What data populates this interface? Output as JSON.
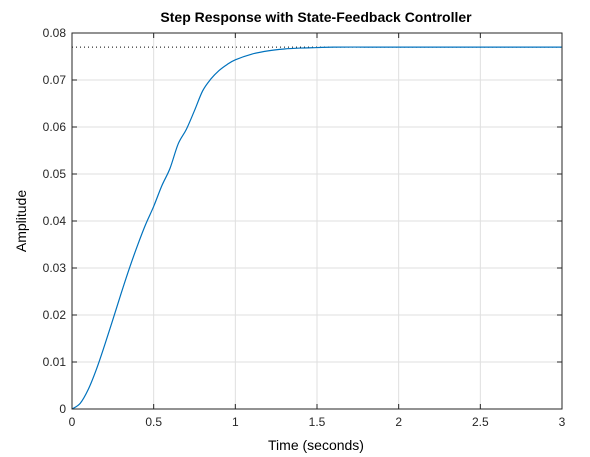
{
  "chart_data": {
    "type": "line",
    "title": "Step Response with State-Feedback Controller",
    "xlabel": "Time (seconds)",
    "ylabel": "Amplitude",
    "xlim": [
      0,
      3
    ],
    "ylim": [
      0,
      0.08
    ],
    "x_ticks": [
      0,
      0.5,
      1,
      1.5,
      2,
      2.5,
      3
    ],
    "x_tick_labels": [
      "0",
      "0.5",
      "1",
      "1.5",
      "2",
      "2.5",
      "3"
    ],
    "y_ticks": [
      0,
      0.01,
      0.02,
      0.03,
      0.04,
      0.05,
      0.06,
      0.07,
      0.08
    ],
    "y_tick_labels": [
      "0",
      "0.01",
      "0.02",
      "0.03",
      "0.04",
      "0.05",
      "0.06",
      "0.07",
      "0.08"
    ],
    "grid": true,
    "legend": "none",
    "steady_state_value": 0.077,
    "steady_state_style": "dotted",
    "line_color": "#0072BD",
    "series": [
      {
        "x": [
          0,
          0.05,
          0.1,
          0.15,
          0.2,
          0.25,
          0.3,
          0.35,
          0.4,
          0.45,
          0.5,
          0.55,
          0.6,
          0.65,
          0.7,
          0.75,
          0.8,
          0.85,
          0.9,
          0.95,
          1.0,
          1.1,
          1.2,
          1.3,
          1.4,
          1.5,
          1.6,
          1.8,
          2.0,
          2.5,
          3.0
        ],
        "y": [
          0,
          0.0012,
          0.0042,
          0.0085,
          0.0136,
          0.019,
          0.0245,
          0.0298,
          0.0347,
          0.0392,
          0.0431,
          0.0475,
          0.0512,
          0.0564,
          0.0595,
          0.0635,
          0.0677,
          0.0702,
          0.072,
          0.0733,
          0.0743,
          0.0755,
          0.0762,
          0.0766,
          0.0768,
          0.0769,
          0.077,
          0.077,
          0.077,
          0.077,
          0.077
        ]
      }
    ]
  }
}
